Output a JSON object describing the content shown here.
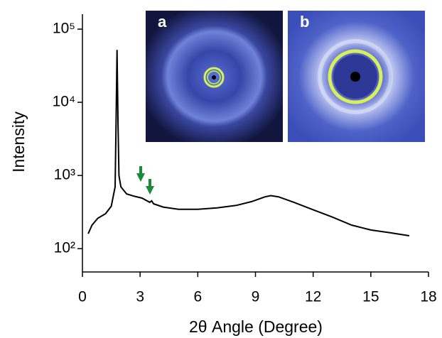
{
  "chart_data": {
    "type": "line",
    "x_label": "2θ Angle (Degree)",
    "y_label": "Intensity",
    "xlim": [
      0,
      18
    ],
    "xticks": [
      0,
      3,
      6,
      9,
      12,
      15,
      18
    ],
    "ylim": [
      48,
      160000
    ],
    "log_y": true,
    "yticks": [
      {
        "value": 100,
        "label": "10²"
      },
      {
        "value": 1000,
        "label": "10³"
      },
      {
        "value": 10000,
        "label": "10⁴"
      },
      {
        "value": 100000,
        "label": "10⁵"
      }
    ],
    "color": "#000000",
    "x": [
      0.3,
      0.5,
      0.8,
      1.2,
      1.5,
      1.7,
      1.75,
      1.8,
      1.85,
      1.9,
      2.0,
      2.3,
      2.7,
      3.1,
      3.5,
      3.6,
      3.7,
      4.2,
      5,
      6,
      7,
      8,
      8.8,
      9.5,
      9.8,
      10.2,
      11,
      12,
      13,
      14,
      15,
      16,
      17
    ],
    "values": [
      160,
      210,
      260,
      300,
      380,
      700,
      5000,
      52000,
      5000,
      1000,
      700,
      560,
      520,
      490,
      430,
      450,
      410,
      370,
      345,
      345,
      360,
      390,
      440,
      510,
      530,
      510,
      430,
      340,
      270,
      210,
      180,
      165,
      150
    ],
    "annotations": [
      "a",
      "b"
    ]
  }
}
